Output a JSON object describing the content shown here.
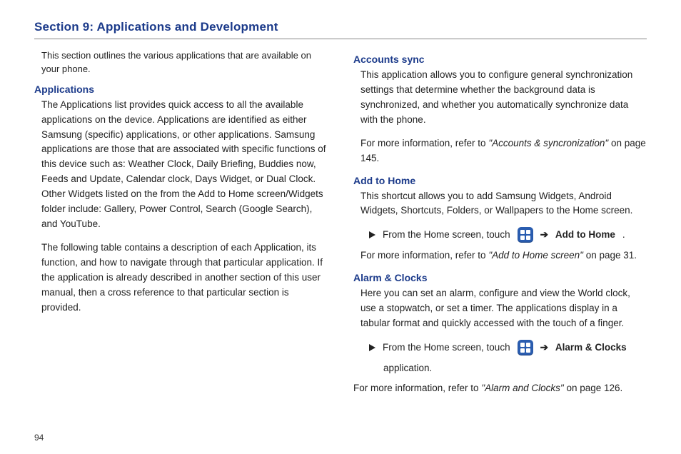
{
  "title": "Section 9: Applications and Development",
  "intro": "This section outlines the various applications that are available on your phone.",
  "pageNumber": "94",
  "colors": {
    "heading": "#1b3a8a",
    "iconBg": "#2a5db0",
    "rule": "#888888",
    "text": "#222222"
  },
  "arrowGlyph": "➔",
  "left": {
    "applications": {
      "heading": "Applications",
      "p1": "The Applications list provides quick access to all the available applications on the device. Applications are identified as either Samsung (specific) applications, or other applications. Samsung applications are those that are associated with specific functions of this device such as: Weather Clock, Daily Briefing, Buddies now, Feeds and Update, Calendar clock, Days Widget, or Dual Clock. Other Widgets listed on the from the Add to Home screen/Widgets folder include: Gallery, Power Control, Search (Google Search), and YouTube.",
      "p2": "The following table contains a description of each Application, its function, and how to navigate through that particular application. If the application is already described in another section of this user manual, then a cross reference to that particular section is provided."
    }
  },
  "right": {
    "accounts": {
      "heading": "Accounts sync",
      "p1": "This application allows you to configure general synchronization settings that determine whether the background data is synchronized, and whether you automatically synchronize data with the phone.",
      "refPrefix": "For more information, refer to ",
      "refItalic": "\"Accounts & syncronization\"",
      "refSuffix": "  on page 145."
    },
    "addHome": {
      "heading": "Add to Home",
      "p1": "This shortcut allows you to add Samsung Widgets, Android Widgets, Shortcuts, Folders, or Wallpapers to the Home screen.",
      "stepText": "From the Home screen, touch",
      "stepBold": "Add to Home",
      "stepTail": ".",
      "refPrefix": "For more information, refer to ",
      "refItalic": "\"Add to Home screen\"",
      "refSuffix": "  on page 31."
    },
    "alarm": {
      "heading": "Alarm & Clocks",
      "p1": "Here you can set an alarm, configure and view the World clock, use a stopwatch, or set a timer. The applications display in a tabular format and quickly accessed with the touch of a finger.",
      "stepText": "From the Home screen, touch",
      "stepBold": "Alarm  & Clocks",
      "stepTail": "application.",
      "refPrefix": "For more information, refer to ",
      "refItalic": "\"Alarm and Clocks\"",
      "refSuffix": "  on page 126."
    }
  }
}
